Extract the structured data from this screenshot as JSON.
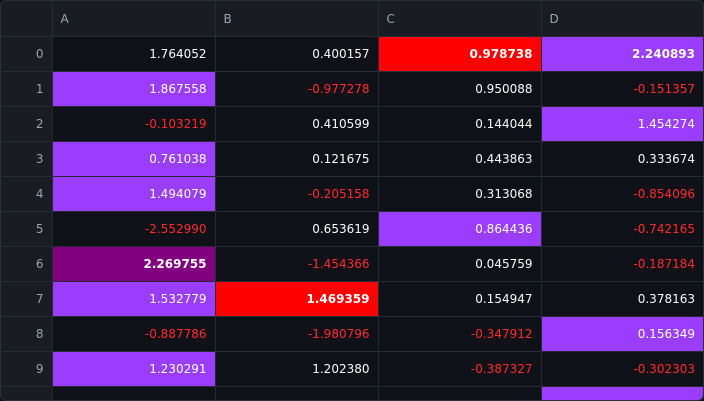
{
  "columns": {
    "index": "",
    "a": "A",
    "b": "B",
    "c": "C",
    "d": "D"
  },
  "rows": [
    {
      "idx": "0",
      "a": "1.764052",
      "b": "0.400157",
      "c": "0.978738",
      "d": "2.240893"
    },
    {
      "idx": "1",
      "a": "1.867558",
      "b": "-0.977278",
      "c": "0.950088",
      "d": "-0.151357"
    },
    {
      "idx": "2",
      "a": "-0.103219",
      "b": "0.410599",
      "c": "0.144044",
      "d": "1.454274"
    },
    {
      "idx": "3",
      "a": "0.761038",
      "b": "0.121675",
      "c": "0.443863",
      "d": "0.333674"
    },
    {
      "idx": "4",
      "a": "1.494079",
      "b": "-0.205158",
      "c": "0.313068",
      "d": "-0.854096"
    },
    {
      "idx": "5",
      "a": "-2.552990",
      "b": "0.653619",
      "c": "0.864436",
      "d": "-0.742165"
    },
    {
      "idx": "6",
      "a": "2.269755",
      "b": "-1.454366",
      "c": "0.045759",
      "d": "-0.187184"
    },
    {
      "idx": "7",
      "a": "1.532779",
      "b": "1.469359",
      "c": "0.154947",
      "d": "0.378163"
    },
    {
      "idx": "8",
      "a": "-0.887786",
      "b": "-1.980796",
      "c": "-0.347912",
      "d": "0.156349"
    },
    {
      "idx": "9",
      "a": "1.230291",
      "b": "1.202380",
      "c": "-0.387327",
      "d": "-0.302303"
    }
  ],
  "colors": {
    "highlight_purple": "#9b3dff",
    "highlight_max_red": "#ff0000",
    "highlight_max_dark": "#800080",
    "negative_text": "#ff2b2b",
    "background": "#0e1117",
    "header_bg": "#1a1c24"
  }
}
